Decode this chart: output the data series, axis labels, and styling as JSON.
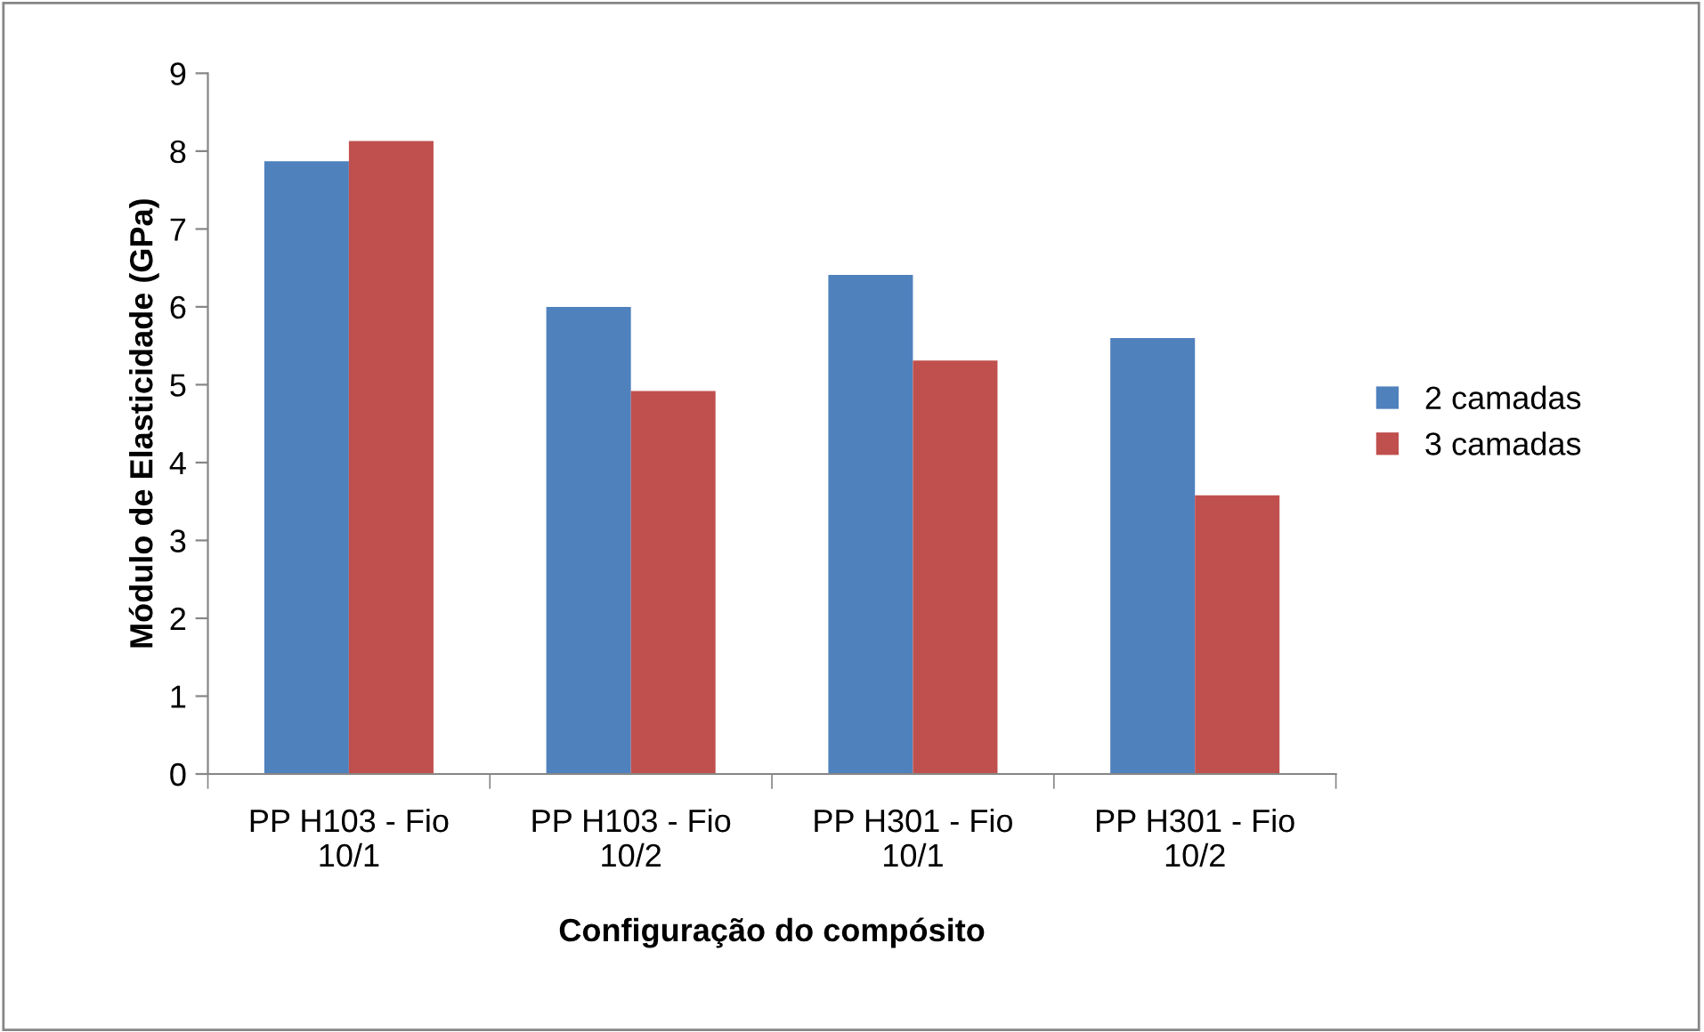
{
  "chart_data": {
    "type": "bar",
    "xlabel": "Configuração do compósito",
    "ylabel": "Módulo de Elasticidade (GPa)",
    "categories": [
      "PP H103 - Fio\n10/1",
      "PP H103 - Fio\n10/2",
      "PP H301 - Fio\n10/1",
      "PP H301 - Fio\n10/2"
    ],
    "series": [
      {
        "name": "2 camadas",
        "color": "#4f81bd",
        "values": [
          7.87,
          6.0,
          6.41,
          5.6
        ]
      },
      {
        "name": "3 camadas",
        "color": "#c0504d",
        "values": [
          8.13,
          4.92,
          5.31,
          3.58
        ]
      }
    ],
    "ylim": [
      0,
      9
    ],
    "yticks": [
      0,
      1,
      2,
      3,
      4,
      5,
      6,
      7,
      8,
      9
    ],
    "grid": false,
    "legend": "right"
  }
}
